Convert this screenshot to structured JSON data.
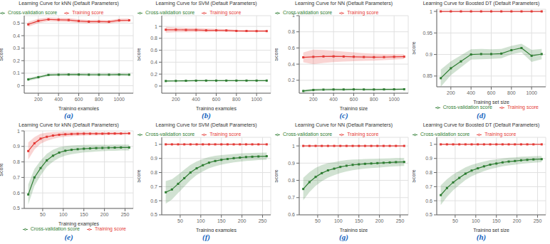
{
  "chart_data": [
    {
      "type": "line",
      "title": "Learning Curve for kNN (Default Parameters)",
      "xlabel": "Training examples",
      "ylabel": "Score",
      "annotations": [
        {
          "text": "(a)",
          "color": "#1565c0"
        }
      ],
      "x": [
        100,
        200,
        300,
        400,
        500,
        600,
        700,
        800,
        900,
        1000,
        1100
      ],
      "series": [
        {
          "name": "Training score",
          "color": "#e53935",
          "marker": "square",
          "values": [
            0.49,
            0.518,
            0.53,
            0.527,
            0.525,
            0.517,
            0.512,
            0.513,
            0.511,
            0.522,
            0.523
          ],
          "std": [
            0.02,
            0.018,
            0.016,
            0.016,
            0.016,
            0.015,
            0.014,
            0.014,
            0.014,
            0.014,
            0.014
          ]
        },
        {
          "name": "Cross-validation score",
          "color": "#2e7d32",
          "marker": "square",
          "values": [
            0.05,
            0.068,
            0.086,
            0.088,
            0.089,
            0.089,
            0.088,
            0.088,
            0.088,
            0.089,
            0.088
          ],
          "std": [
            0.012,
            0.011,
            0.01,
            0.01,
            0.01,
            0.01,
            0.01,
            0.01,
            0.01,
            0.01,
            0.01
          ]
        }
      ],
      "xlim": [
        60,
        1140
      ],
      "xticks": [
        200,
        400,
        600,
        800,
        1000
      ],
      "ylim": [
        -0.06,
        0.56
      ],
      "yticks": [
        0,
        0.1,
        0.2,
        0.3,
        0.4,
        0.5
      ],
      "grid": true,
      "legend": "upper left"
    },
    {
      "type": "line",
      "title": "Learning Curve for SVM (Default Parameters)",
      "xlabel": "Training examples",
      "ylabel": "Score",
      "annotations": [
        {
          "text": "(b)",
          "color": "#1565c0"
        }
      ],
      "x": [
        100,
        200,
        300,
        400,
        500,
        600,
        700,
        800,
        900,
        1000,
        1100
      ],
      "series": [
        {
          "name": "Training score",
          "color": "#e53935",
          "marker": "square",
          "values": [
            0.944,
            0.944,
            0.94,
            0.94,
            0.934,
            0.934,
            0.932,
            0.924,
            0.923,
            0.921,
            0.921
          ],
          "std": [
            0.05,
            0.04,
            0.038,
            0.034,
            0.03,
            0.025,
            0.022,
            0.018,
            0.016,
            0.015,
            0.014
          ]
        },
        {
          "name": "Cross-validation score",
          "color": "#2e7d32",
          "marker": "square",
          "values": [
            0.084,
            0.086,
            0.088,
            0.09,
            0.091,
            0.091,
            0.091,
            0.091,
            0.091,
            0.091,
            0.091
          ],
          "std": [
            0.014,
            0.013,
            0.012,
            0.011,
            0.011,
            0.011,
            0.01,
            0.01,
            0.01,
            0.01,
            0.01
          ]
        }
      ],
      "xlim": [
        60,
        1140
      ],
      "xticks": [
        200,
        400,
        600,
        800,
        1000
      ],
      "ylim": [
        -0.12,
        1.18
      ],
      "yticks": [
        0,
        0.2,
        0.4,
        0.6,
        0.8,
        1
      ],
      "grid": true,
      "legend": "upper left"
    },
    {
      "type": "line",
      "title": "Learning Curve for NN (Default Parameters)",
      "xlabel": "Training size",
      "ylabel": "Score",
      "annotations": [
        {
          "text": "(c)",
          "color": "#1565c0"
        }
      ],
      "x": [
        100,
        200,
        300,
        400,
        500,
        600,
        700,
        800,
        900,
        1000,
        1100
      ],
      "series": [
        {
          "name": "Training score",
          "color": "#e53935",
          "marker": "square",
          "values": [
            0.484,
            0.49,
            0.495,
            0.496,
            0.494,
            0.491,
            0.488,
            0.486,
            0.487,
            0.49,
            0.492
          ],
          "std": [
            0.06,
            0.09,
            0.08,
            0.07,
            0.062,
            0.055,
            0.048,
            0.042,
            0.038,
            0.034,
            0.03
          ]
        },
        {
          "name": "Cross-validation score",
          "color": "#2e7d32",
          "marker": "square",
          "values": [
            0.067,
            0.08,
            0.084,
            0.086,
            0.086,
            0.087,
            0.086,
            0.086,
            0.087,
            0.088,
            0.089
          ],
          "std": [
            0.018,
            0.016,
            0.014,
            0.013,
            0.012,
            0.012,
            0.011,
            0.011,
            0.011,
            0.011,
            0.01
          ]
        }
      ],
      "xlim": [
        60,
        1140
      ],
      "xticks": [
        200,
        400,
        600,
        800,
        1000
      ],
      "ylim": [
        0.04,
        1.0
      ],
      "yticks": [
        0.2,
        0.4,
        0.6,
        0.8,
        1
      ],
      "grid": true,
      "legend": "upper left"
    },
    {
      "type": "line",
      "title": "Learning Curve for Boosted DT (Default Parameters)",
      "xlabel": "Training set size",
      "ylabel": "Score",
      "annotations": [
        {
          "text": "(d)",
          "color": "#1565c0"
        }
      ],
      "x": [
        100,
        200,
        300,
        400,
        500,
        600,
        700,
        800,
        900,
        1000,
        1100
      ],
      "series": [
        {
          "name": "Training score",
          "color": "#e53935",
          "marker": "square",
          "values": [
            1.0,
            1.0,
            1.0,
            1.0,
            1.0,
            1.0,
            1.0,
            1.0,
            1.0,
            1.0,
            1.0
          ],
          "std": [
            0.0,
            0.0,
            0.0,
            0.0,
            0.0,
            0.0,
            0.0,
            0.0,
            0.0,
            0.0,
            0.0
          ]
        },
        {
          "name": "Cross-validation score",
          "color": "#2e7d32",
          "marker": "square",
          "values": [
            0.845,
            0.868,
            0.884,
            0.9,
            0.901,
            0.901,
            0.902,
            0.91,
            0.915,
            0.897,
            0.901
          ],
          "std": [
            0.02,
            0.016,
            0.014,
            0.012,
            0.012,
            0.011,
            0.011,
            0.01,
            0.01,
            0.014,
            0.012
          ]
        }
      ],
      "xlim": [
        60,
        1140
      ],
      "xticks": [
        200,
        400,
        600,
        800,
        1000
      ],
      "ylim": [
        0.825,
        1.005
      ],
      "yticks": [
        0.85,
        0.9,
        0.95,
        1
      ],
      "grid": true,
      "legend": "lower right"
    },
    {
      "type": "line",
      "title": "Learning Curve for kNN (Default Parameters)",
      "xlabel": "Training examples",
      "ylabel": "Score",
      "annotations": [
        {
          "text": "(e)",
          "color": "#1565c0"
        }
      ],
      "x": [
        15,
        30,
        45,
        60,
        75,
        90,
        105,
        120,
        135,
        150,
        165,
        180,
        195,
        210,
        225,
        240,
        260
      ],
      "series": [
        {
          "name": "Training score",
          "color": "#e53935",
          "marker": "square",
          "values": [
            0.87,
            0.92,
            0.95,
            0.962,
            0.97,
            0.975,
            0.978,
            0.98,
            0.981,
            0.982,
            0.982,
            0.982,
            0.982,
            0.983,
            0.983,
            0.983,
            0.984
          ],
          "std": [
            0.055,
            0.04,
            0.032,
            0.026,
            0.022,
            0.018,
            0.016,
            0.014,
            0.013,
            0.012,
            0.011,
            0.011,
            0.01,
            0.01,
            0.01,
            0.009,
            0.009
          ]
        },
        {
          "name": "Cross-validation score",
          "color": "#2e7d32",
          "marker": "square",
          "values": [
            0.59,
            0.7,
            0.76,
            0.81,
            0.84,
            0.86,
            0.872,
            0.878,
            0.882,
            0.885,
            0.887,
            0.889,
            0.89,
            0.891,
            0.892,
            0.893,
            0.893
          ],
          "std": [
            0.065,
            0.055,
            0.048,
            0.042,
            0.038,
            0.034,
            0.031,
            0.028,
            0.026,
            0.024,
            0.023,
            0.022,
            0.021,
            0.02,
            0.02,
            0.019,
            0.019
          ]
        }
      ],
      "xlim": [
        5.2,
        269.8
      ],
      "xticks": [
        50,
        100,
        150,
        200,
        250
      ],
      "ylim": [
        0.5,
        1.0
      ],
      "yticks": [
        0.5,
        0.6,
        0.7,
        0.8,
        0.9,
        1
      ],
      "grid": true,
      "legend": "lower right"
    },
    {
      "type": "line",
      "title": "Learning Curve for SVM (Default Parameters)",
      "xlabel": "Training examples",
      "ylabel": "Score",
      "annotations": [
        {
          "text": "(f)",
          "color": "#1565c0"
        }
      ],
      "x": [
        15,
        30,
        45,
        60,
        75,
        90,
        105,
        120,
        135,
        150,
        165,
        180,
        195,
        210,
        225,
        240,
        260
      ],
      "series": [
        {
          "name": "Training score",
          "color": "#e53935",
          "marker": "square",
          "values": [
            1.0,
            1.0,
            1.0,
            1.0,
            1.0,
            1.0,
            1.0,
            1.0,
            1.0,
            1.0,
            1.0,
            1.0,
            1.0,
            1.0,
            1.0,
            1.0,
            1.0
          ],
          "std": [
            0.0,
            0.0,
            0.0,
            0.0,
            0.0,
            0.0,
            0.0,
            0.0,
            0.0,
            0.0,
            0.0,
            0.0,
            0.0,
            0.0,
            0.0,
            0.0,
            0.0
          ]
        },
        {
          "name": "Cross-validation score",
          "color": "#2e7d32",
          "marker": "square",
          "values": [
            0.66,
            0.68,
            0.72,
            0.76,
            0.8,
            0.83,
            0.852,
            0.87,
            0.882,
            0.89,
            0.896,
            0.902,
            0.906,
            0.91,
            0.912,
            0.914,
            0.916
          ],
          "std": [
            0.08,
            0.072,
            0.065,
            0.06,
            0.054,
            0.048,
            0.044,
            0.04,
            0.037,
            0.034,
            0.032,
            0.03,
            0.029,
            0.028,
            0.027,
            0.026,
            0.025
          ]
        }
      ],
      "xlim": [
        5.2,
        269.8
      ],
      "xticks": [
        50,
        100,
        150,
        200,
        250
      ],
      "ylim": [
        0.5,
        1.05
      ],
      "yticks": [
        0.5,
        0.6,
        0.7,
        0.8,
        0.9,
        1
      ],
      "grid": true,
      "legend": "upper left"
    },
    {
      "type": "line",
      "title": "Learning Curve for NN (Default Parameters)",
      "xlabel": "Training size",
      "ylabel": "Score",
      "annotations": [
        {
          "text": "(g)",
          "color": "#1565c0"
        }
      ],
      "x": [
        15,
        30,
        45,
        60,
        75,
        90,
        105,
        120,
        135,
        150,
        165,
        180,
        195,
        210,
        225,
        240,
        260
      ],
      "series": [
        {
          "name": "Training score",
          "color": "#e53935",
          "marker": "square",
          "values": [
            1.0,
            1.0,
            1.0,
            1.0,
            1.0,
            1.0,
            1.0,
            1.0,
            1.0,
            1.0,
            1.0,
            1.0,
            1.0,
            1.0,
            1.0,
            1.0,
            1.0
          ],
          "std": [
            0.0,
            0.0,
            0.0,
            0.0,
            0.0,
            0.0,
            0.0,
            0.0,
            0.0,
            0.0,
            0.0,
            0.0,
            0.0,
            0.0,
            0.0,
            0.0,
            0.0
          ]
        },
        {
          "name": "Cross-validation score",
          "color": "#2e7d32",
          "marker": "square",
          "values": [
            0.75,
            0.79,
            0.82,
            0.842,
            0.858,
            0.868,
            0.878,
            0.885,
            0.89,
            0.893,
            0.896,
            0.898,
            0.9,
            0.902,
            0.904,
            0.906,
            0.907
          ],
          "std": [
            0.065,
            0.058,
            0.052,
            0.047,
            0.042,
            0.038,
            0.035,
            0.033,
            0.031,
            0.029,
            0.028,
            0.027,
            0.026,
            0.025,
            0.024,
            0.024,
            0.023
          ]
        }
      ],
      "xlim": [
        5.2,
        269.8
      ],
      "xticks": [
        50,
        100,
        150,
        200,
        250
      ],
      "ylim": [
        0.6,
        1.05
      ],
      "yticks": [
        0.6,
        0.7,
        0.8,
        0.9,
        1
      ],
      "grid": true,
      "legend": "upper left"
    },
    {
      "type": "line",
      "title": "Learning Curve for Boosted DT (Default Parameters)",
      "xlabel": "Training set size",
      "ylabel": "Score",
      "annotations": [
        {
          "text": "(h)",
          "color": "#1565c0"
        }
      ],
      "x": [
        15,
        30,
        45,
        60,
        75,
        90,
        105,
        120,
        135,
        150,
        165,
        180,
        195,
        210,
        225,
        240,
        260
      ],
      "series": [
        {
          "name": "Training score",
          "color": "#e53935",
          "marker": "square",
          "values": [
            1.0,
            1.0,
            1.0,
            1.0,
            1.0,
            1.0,
            1.0,
            1.0,
            1.0,
            1.0,
            1.0,
            1.0,
            1.0,
            1.0,
            1.0,
            1.0,
            1.0
          ],
          "std": [
            0.0,
            0.0,
            0.0,
            0.0,
            0.0,
            0.0,
            0.0,
            0.0,
            0.0,
            0.0,
            0.0,
            0.0,
            0.0,
            0.0,
            0.0,
            0.0,
            0.0
          ]
        },
        {
          "name": "Cross-validation score",
          "color": "#2e7d32",
          "marker": "square",
          "values": [
            0.64,
            0.69,
            0.73,
            0.762,
            0.792,
            0.814,
            0.83,
            0.844,
            0.856,
            0.864,
            0.872,
            0.878,
            0.882,
            0.887,
            0.89,
            0.893,
            0.895
          ],
          "std": [
            0.07,
            0.062,
            0.056,
            0.05,
            0.045,
            0.04,
            0.037,
            0.034,
            0.032,
            0.03,
            0.028,
            0.027,
            0.026,
            0.025,
            0.024,
            0.023,
            0.022
          ]
        }
      ],
      "xlim": [
        5.2,
        269.8
      ],
      "xticks": [
        50,
        100,
        150,
        200,
        250
      ],
      "ylim": [
        0.5,
        1.05
      ],
      "yticks": [
        0.5,
        0.6,
        0.7,
        0.8,
        0.9,
        1
      ],
      "grid": true,
      "legend": "upper left"
    }
  ]
}
